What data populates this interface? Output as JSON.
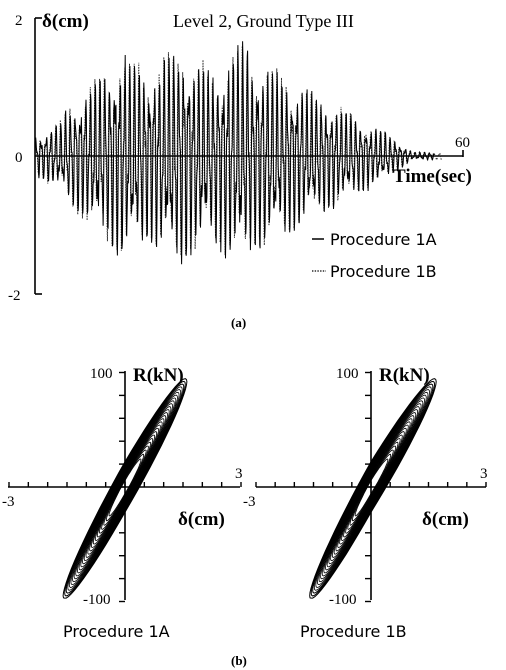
{
  "chart_data": [
    {
      "type": "line",
      "panel_label": "(a)",
      "title": "Level 2, Ground Type III",
      "ylabel": "δ(cm)",
      "xlabel": "Time(sec)",
      "xlim": [
        0,
        60
      ],
      "ylim": [
        -2,
        2
      ],
      "x_tick_labels": [
        "60"
      ],
      "y_tick_labels": [
        "2",
        "0",
        "-2"
      ],
      "legend_position": "bottom-right",
      "series": [
        {
          "name": "Procedure 1A",
          "style": "solid"
        },
        {
          "name": "Procedure 1B",
          "style": "dotted"
        }
      ]
    },
    {
      "type": "line",
      "panel_label": "(b)",
      "subplots": [
        {
          "caption": "Procedure 1A",
          "xlabel": "δ(cm)",
          "ylabel": "R(kN)",
          "xlim": [
            -3,
            3
          ],
          "ylim": [
            -100,
            100
          ],
          "x_tick_labels": [
            "-3",
            "3"
          ],
          "y_tick_labels": [
            "100",
            "-100"
          ],
          "peak_displacement": [
            -1.6,
            1.6
          ],
          "peak_force": [
            -95,
            92
          ]
        },
        {
          "caption": "Procedure 1B",
          "xlabel": "δ(cm)",
          "ylabel": "R(kN)",
          "xlim": [
            -3,
            3
          ],
          "ylim": [
            -100,
            100
          ],
          "x_tick_labels": [
            "-3",
            "3"
          ],
          "y_tick_labels": [
            "100",
            "-100"
          ],
          "peak_displacement": [
            -1.6,
            1.7
          ],
          "peak_force": [
            -95,
            92
          ]
        }
      ]
    }
  ]
}
